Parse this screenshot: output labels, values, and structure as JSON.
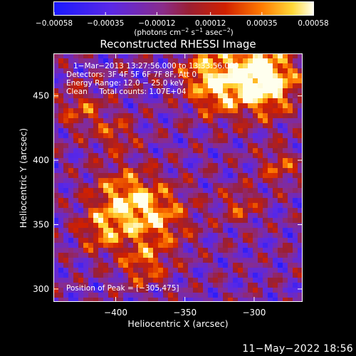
{
  "chart_data": {
    "type": "heatmap",
    "title": "Reconstructed RHESSI Image",
    "xlabel": "Heliocentric X (arcsec)",
    "ylabel": "Heliocentric Y (arcsec)",
    "xlim": [
      -445,
      -265
    ],
    "ylim": [
      290,
      483
    ],
    "x_ticks": [
      -400,
      -350,
      -300
    ],
    "y_ticks": [
      300,
      350,
      400,
      450
    ],
    "x_tick_labels": [
      "−400",
      "−350",
      "−300"
    ],
    "y_tick_labels": [
      "300",
      "350",
      "400",
      "450"
    ],
    "colorbar": {
      "range": [
        -0.00058,
        0.00058
      ],
      "ticks": [
        -0.00058,
        -0.00035,
        -0.00012,
        0.00012,
        0.00035,
        0.00058
      ],
      "tick_labels": [
        "−0.00058",
        "−0.00035",
        "−0.00012",
        "0.00012",
        "0.00035",
        "0.00058"
      ],
      "units_main": "(photons cm",
      "units_sup1": "−2",
      "units_mid1": " s",
      "units_sup2": "−1",
      "units_mid2": " asec",
      "units_sup3": "−2",
      "units_end": ")"
    },
    "annotations": {
      "time": "1−Mar−2013 13:27:56.000 to 13:33:56.000",
      "detectors": "Detectors: 3F 4F 5F 6F 7F 8F, Att 0",
      "energy": "Energy Range: 12.0 − 25.0 keV",
      "clean": "Clean     Total counts: 1.07E+04",
      "peak": "Position of Peak = [−305,475]"
    },
    "peak": {
      "x": -305,
      "y": 475
    },
    "hot_spots": [
      {
        "x": -306,
        "y": 470,
        "r": 22,
        "amp": 1.0
      },
      {
        "x": -290,
        "y": 458,
        "r": 14,
        "amp": 0.8
      },
      {
        "x": -330,
        "y": 452,
        "r": 12,
        "amp": 0.55
      },
      {
        "x": -395,
        "y": 372,
        "r": 16,
        "amp": 0.75
      },
      {
        "x": -372,
        "y": 355,
        "r": 18,
        "amp": 0.8
      },
      {
        "x": -410,
        "y": 345,
        "r": 12,
        "amp": 0.65
      },
      {
        "x": -380,
        "y": 318,
        "r": 12,
        "amp": 0.6
      },
      {
        "x": -425,
        "y": 440,
        "r": 12,
        "amp": 0.55
      },
      {
        "x": -400,
        "y": 420,
        "r": 10,
        "amp": 0.5
      },
      {
        "x": -282,
        "y": 395,
        "r": 10,
        "amp": 0.55
      },
      {
        "x": -310,
        "y": 365,
        "r": 10,
        "amp": 0.5
      },
      {
        "x": -340,
        "y": 470,
        "r": 10,
        "amp": 0.45
      }
    ]
  },
  "footer": {
    "timestamp": "11−May−2022 18:56"
  }
}
